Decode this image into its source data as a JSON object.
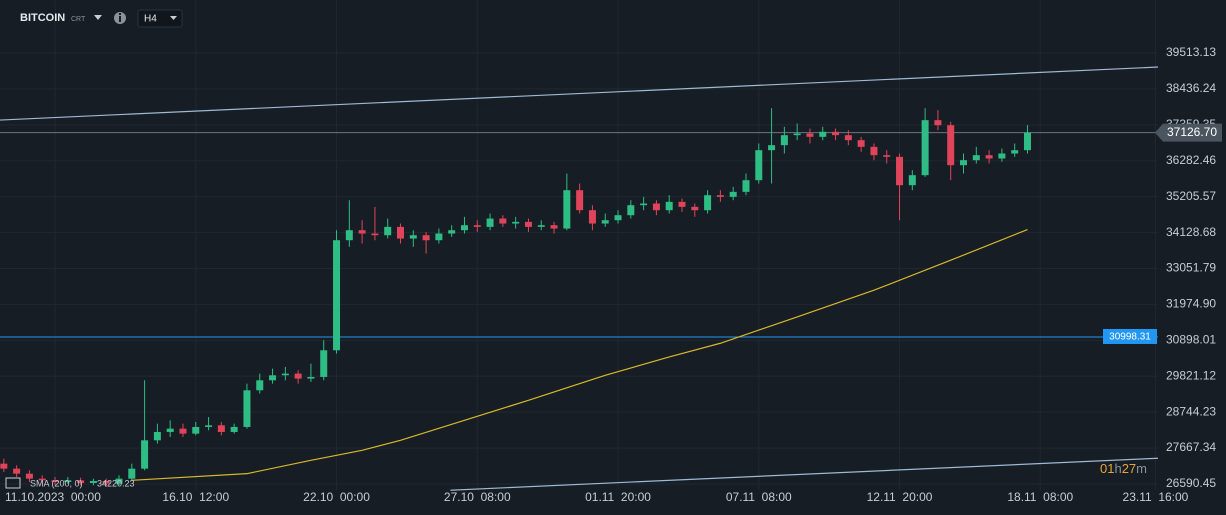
{
  "header": {
    "symbol": "BITCOIN",
    "symbol_tag": "CRT",
    "timeframe": "H4"
  },
  "chart_data": {
    "type": "candlestick",
    "up_color": "#2ebd85",
    "down_color": "#e0445a",
    "grid": true,
    "x": [
      -4,
      -3,
      -2,
      -1,
      0,
      1,
      2,
      3,
      4,
      5,
      6,
      7,
      8,
      9,
      10,
      11,
      12,
      13,
      14,
      15,
      16,
      17,
      18,
      19,
      20,
      21,
      22,
      23,
      24,
      25,
      26,
      27,
      28,
      29,
      30,
      31,
      32,
      33,
      34,
      35,
      36,
      37,
      38,
      39,
      40,
      41,
      42,
      43,
      44,
      45,
      46,
      47,
      48,
      49,
      50,
      51,
      52,
      53,
      54,
      55,
      56,
      57,
      58,
      59,
      60,
      61,
      62,
      63,
      64,
      65,
      66,
      67,
      68,
      69,
      70,
      71,
      72,
      73,
      74,
      75,
      76
    ],
    "open": [
      27200,
      27050,
      26900,
      26750,
      26700,
      26650,
      26700,
      26620,
      26680,
      26600,
      26750,
      27050,
      27900,
      28150,
      28250,
      28100,
      28300,
      28350,
      28150,
      28300,
      29400,
      29700,
      29850,
      29900,
      29750,
      29800,
      30600,
      33900,
      34200,
      34100,
      34050,
      34300,
      33950,
      34050,
      33900,
      34100,
      34200,
      34350,
      34300,
      34550,
      34400,
      34450,
      34300,
      34350,
      34250,
      35400,
      34800,
      34400,
      34500,
      34650,
      34950,
      35000,
      34800,
      35050,
      34900,
      34800,
      35250,
      35200,
      35350,
      35700,
      36600,
      36750,
      37050,
      37100,
      37000,
      37150,
      37050,
      36900,
      36700,
      36450,
      36400,
      35550,
      35850,
      37500,
      37350,
      36150,
      36300,
      36450,
      36350,
      36500,
      36600
    ],
    "high": [
      27350,
      27150,
      27000,
      26850,
      26800,
      26800,
      26780,
      26750,
      26750,
      26850,
      27200,
      29700,
      28400,
      28500,
      28400,
      28450,
      28600,
      28450,
      28400,
      29600,
      29900,
      30050,
      30100,
      30000,
      30200,
      30900,
      34200,
      35100,
      34500,
      34900,
      34550,
      34400,
      34200,
      34150,
      34250,
      34350,
      34600,
      34500,
      34700,
      34650,
      34600,
      34550,
      34500,
      34450,
      35900,
      35600,
      34950,
      34700,
      34800,
      35100,
      35200,
      35100,
      35250,
      35150,
      35000,
      35400,
      35400,
      35500,
      35900,
      36800,
      37860,
      37300,
      37400,
      37250,
      37300,
      37250,
      37200,
      37000,
      36800,
      36600,
      36500,
      36000,
      37860,
      37800,
      37450,
      36500,
      36700,
      36600,
      36650,
      36800,
      37350
    ],
    "low": [
      26950,
      26800,
      26650,
      26600,
      26550,
      26600,
      26550,
      26550,
      26500,
      26550,
      26700,
      27000,
      27800,
      28000,
      28000,
      28050,
      28200,
      28050,
      28100,
      28250,
      29300,
      29600,
      29700,
      29600,
      29650,
      29700,
      30500,
      33700,
      33800,
      33900,
      33950,
      33800,
      33700,
      33500,
      33800,
      34000,
      34100,
      34150,
      34200,
      34300,
      34250,
      34150,
      34200,
      34100,
      34200,
      34700,
      34200,
      34300,
      34400,
      34550,
      34800,
      34650,
      34700,
      34750,
      34600,
      34700,
      35050,
      35100,
      35250,
      35600,
      35600,
      36500,
      36900,
      36800,
      36900,
      36900,
      36750,
      36550,
      36300,
      36200,
      34500,
      35400,
      35800,
      37200,
      35700,
      35900,
      36200,
      36200,
      36250,
      36400,
      36500
    ],
    "close": [
      27050,
      26900,
      26750,
      26700,
      26650,
      26700,
      26620,
      26680,
      26600,
      26750,
      27050,
      27900,
      28150,
      28250,
      28100,
      28300,
      28350,
      28150,
      28300,
      29400,
      29700,
      29850,
      29900,
      29750,
      29800,
      30600,
      33900,
      34200,
      34100,
      34050,
      34300,
      33950,
      34050,
      33900,
      34100,
      34200,
      34350,
      34300,
      34550,
      34400,
      34450,
      34300,
      34350,
      34250,
      35400,
      34800,
      34400,
      34500,
      34650,
      34950,
      35000,
      34800,
      35050,
      34900,
      34800,
      35250,
      35200,
      35350,
      35700,
      36600,
      36750,
      37050,
      37100,
      37000,
      37150,
      37050,
      36900,
      36700,
      36450,
      36400,
      35550,
      35850,
      37500,
      37350,
      36150,
      36300,
      36450,
      36350,
      36500,
      36600,
      37126.7
    ],
    "overlays": [
      {
        "name": "SMA (200, 0)",
        "color": "#d9b72b",
        "x": [
          6,
          15,
          20,
          24,
          27,
          32,
          37,
          43,
          48,
          52,
          58,
          64,
          70,
          76
        ],
        "values": [
          26700,
          26900,
          27300,
          27600,
          27900,
          28500,
          29100,
          29850,
          30400,
          30810,
          31600,
          32400,
          33300,
          34220.23
        ]
      }
    ],
    "trend_lines": [
      {
        "color": "#9fb8d4",
        "x": [
          -4.3,
          86.2
        ],
        "values": [
          37503,
          39093
        ]
      },
      {
        "color": "#9fb8d4",
        "x": [
          30.9,
          86.2
        ],
        "values": [
          26403,
          27363
        ]
      }
    ],
    "price_lines": [
      {
        "value": 37126.7,
        "label": "37126.70",
        "color": "#4a5560"
      },
      {
        "value": 30998.31,
        "color": "#2196f3"
      }
    ],
    "xlim": [
      -4.3,
      86.2
    ],
    "xticks": [
      {
        "value": 0,
        "label": "11.10.2023  00:00"
      },
      {
        "value": 11,
        "label": "16.10  12:00"
      },
      {
        "value": 22,
        "label": "22.10  00:00"
      },
      {
        "value": 33,
        "label": "27.10  08:00"
      },
      {
        "value": 44,
        "label": "01.11  20:00"
      },
      {
        "value": 55,
        "label": "07.11  08:00"
      },
      {
        "value": 66,
        "label": "12.11  20:00"
      },
      {
        "value": 77,
        "label": "18.11  08:00"
      },
      {
        "value": 86,
        "label": "23.11  16:00"
      }
    ],
    "ylim": [
      26410,
      41103
    ],
    "yticks": [
      39513.13,
      38436.24,
      37359.35,
      36282.46,
      35205.57,
      34128.68,
      33051.79,
      {
        "value": 31974.9,
        "label": "31974.90"
      },
      30898.01,
      29821.12,
      28744.23,
      27667.34,
      26590.45
    ],
    "timer": [
      "01",
      "h",
      "27",
      "m"
    ]
  }
}
